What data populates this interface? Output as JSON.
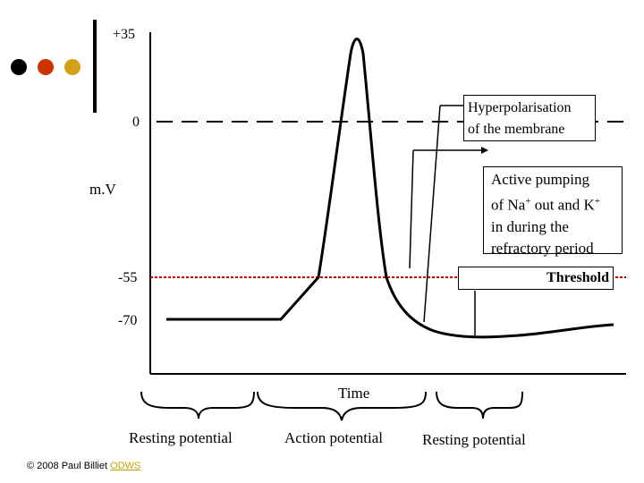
{
  "axis": {
    "y_ticks": [
      "+35",
      "0",
      "-55",
      "-70"
    ],
    "y_label": "m.V",
    "x_label": "Time"
  },
  "annotations": {
    "hyperpolarisation": [
      "Hyperpolarisation",
      "of the membrane"
    ],
    "active_pumping": [
      "Active pumping",
      "of Na",
      "+",
      " out and K",
      "+",
      "in during the",
      "refractory period"
    ],
    "threshold": "Threshold"
  },
  "phases": {
    "resting_left": "Resting potential",
    "action": "Action potential",
    "resting_right": "Resting potential"
  },
  "footer": {
    "copyright": "© 2008 Paul Billiet ",
    "link": "ODWS"
  },
  "colors": {
    "dot1": "#000000",
    "dot2": "#cc3300",
    "dot3": "#d4a017",
    "threshold_line": "#cc0000"
  }
}
